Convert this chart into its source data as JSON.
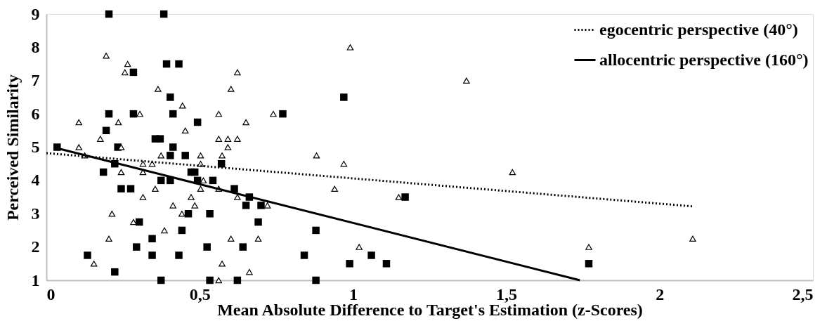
{
  "chart_data": {
    "type": "scatter",
    "xlabel": "Mean Absolute Difference to Target's Estimation (z-Scores)",
    "ylabel": "Perceived Similarity",
    "xlim": [
      0,
      2.5
    ],
    "ylim": [
      1,
      9
    ],
    "xticks": [
      0,
      {
        "value": 0.5,
        "label": "0,5"
      },
      1,
      {
        "value": 1.5,
        "label": "1,5"
      },
      2,
      {
        "value": 2.5,
        "label": "2,5"
      }
    ],
    "yticks": [
      1,
      2,
      3,
      4,
      5,
      6,
      7,
      8,
      9
    ],
    "grid": false,
    "legend": "top right",
    "series": [
      {
        "marker": "square",
        "color": "#000000",
        "x": [
          0.204,
          0.383,
          0.392,
          0.432,
          0.284,
          0.404,
          0.204,
          0.284,
          0.413,
          0.493,
          0.195,
          0.355,
          0.371,
          0.413,
          0.035,
          0.233,
          0.404,
          0.453,
          0.223,
          0.186,
          0.472,
          0.484,
          0.374,
          0.404,
          0.493,
          0.244,
          0.275,
          0.463,
          0.303,
          0.442,
          0.345,
          0.294,
          0.345,
          0.432,
          0.134,
          0.223,
          0.374,
          0.571,
          0.543,
          0.613,
          0.662,
          0.651,
          0.7,
          0.533,
          0.691,
          0.879,
          0.524,
          0.641,
          0.841,
          0.989,
          0.533,
          0.623,
          0.879,
          0.97,
          0.771,
          1.17,
          1.06,
          1.109,
          1.769
        ],
        "values": [
          9,
          9,
          7.5,
          7.5,
          7.25,
          6.5,
          6,
          6,
          6,
          5.75,
          5.5,
          5.25,
          5.25,
          5,
          5,
          5,
          4.75,
          4.75,
          4.5,
          4.25,
          4.25,
          4.25,
          4,
          4,
          4,
          3.75,
          3.75,
          3,
          2.75,
          2.5,
          2.25,
          2,
          1.75,
          1.75,
          1.75,
          1.25,
          1,
          4.5,
          4,
          3.75,
          3.5,
          3.25,
          3.25,
          3,
          2.75,
          2.5,
          2,
          2,
          1.75,
          1.5,
          1,
          1,
          1,
          6.5,
          6,
          3.5,
          1.75,
          1.5,
          1.5
        ]
      },
      {
        "marker": "triangle",
        "color": "#000000",
        "x": [
          0.195,
          0.265,
          0.256,
          0.364,
          0.444,
          0.305,
          0.106,
          0.235,
          0.453,
          0.176,
          0.106,
          0.244,
          0.125,
          0.374,
          0.503,
          0.315,
          0.345,
          0.503,
          0.244,
          0.315,
          0.512,
          0.355,
          0.503,
          0.315,
          0.472,
          0.413,
          0.484,
          0.442,
          0.214,
          0.284,
          0.385,
          0.204,
          0.155,
          0.991,
          0.623,
          0.602,
          0.562,
          0.74,
          0.651,
          0.562,
          0.592,
          0.623,
          0.592,
          0.573,
          0.881,
          0.97,
          0.562,
          0.94,
          0.623,
          0.721,
          0.602,
          0.691,
          1.02,
          0.573,
          0.662,
          0.562,
          1.37,
          1.52,
          1.149,
          1.769,
          2.108
        ],
        "values": [
          7.75,
          7.5,
          7.25,
          6.75,
          6.25,
          6,
          5.75,
          5.75,
          5.5,
          5.25,
          5,
          5,
          4.75,
          4.75,
          4.75,
          4.5,
          4.5,
          4.5,
          4.25,
          4.25,
          4,
          3.75,
          3.75,
          3.5,
          3.5,
          3.25,
          3.25,
          3,
          3,
          2.75,
          2.5,
          2.25,
          1.5,
          8,
          7.25,
          6.75,
          6,
          6,
          5.75,
          5.25,
          5.25,
          5.25,
          5,
          4.75,
          4.75,
          4.5,
          3.75,
          3.75,
          3.5,
          3.25,
          2.25,
          2.25,
          2,
          1.5,
          1.25,
          1,
          7,
          4.25,
          3.5,
          2,
          2.25
        ]
      },
      {
        "type": "line",
        "name": "egocentric perspective (40°)",
        "line_style": "dotted",
        "color": "#000000",
        "x": [
          0,
          2.108
        ],
        "values": [
          4.82,
          3.22
        ]
      },
      {
        "type": "line",
        "name": "allocentric perspective (160°)",
        "line_style": "solid",
        "color": "#000000",
        "x": [
          0.035,
          1.74
        ],
        "values": [
          4.97,
          1
        ]
      }
    ]
  }
}
